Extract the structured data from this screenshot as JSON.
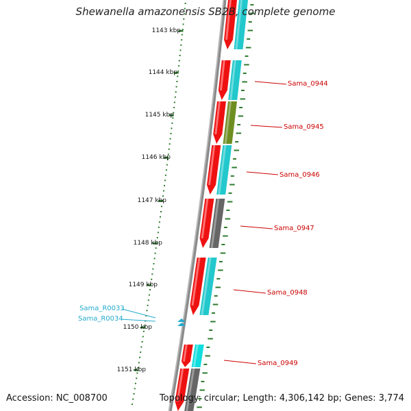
{
  "title": "Shewanella amazonensis SB2B, complete genome",
  "footer": {
    "accession": "Accession: NC_008700",
    "stats": "Topology: circular; Length: 4,306,142 bp; Genes: 3,774"
  },
  "scale_labels": [
    "1143 kbp",
    "1144 kbp",
    "1145 kbp",
    "1146 kbp",
    "1147 kbp",
    "1148 kbp",
    "1149 kbp",
    "1150 kbp",
    "1151 kbp"
  ],
  "gene_labels": [
    "Sama_0944",
    "Sama_0945",
    "Sama_0946",
    "Sama_0947",
    "Sama_0948",
    "Sama_0949"
  ],
  "rna_labels": [
    "Sama_R0033",
    "Sama_R0034"
  ],
  "colors": {
    "cds": "#ee1111",
    "cog_cyan": "#22c8cc",
    "cog_olive": "#6e8e22",
    "cog_gray": "#666666",
    "rna": "#22aacc",
    "gene_label": "#cc0000",
    "tick": "#2d7a2d",
    "backbone": "#777777"
  }
}
